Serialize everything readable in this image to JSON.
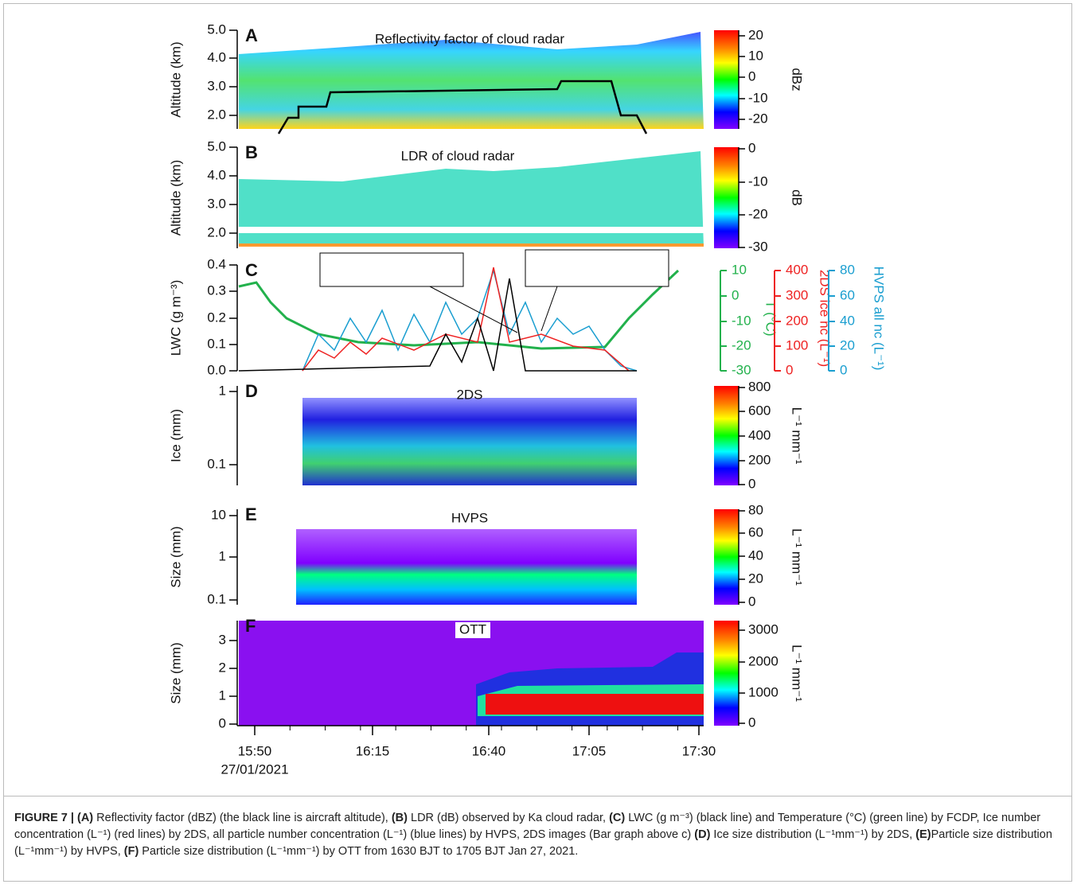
{
  "figure": {
    "panels": [
      {
        "label": "A",
        "title": "Reflectivity factor of cloud radar",
        "ylabel": "Altitude (km)",
        "yticks": [
          "5.0",
          "4.0",
          "3.0",
          "2.0"
        ],
        "colorbar": {
          "label": "dBz",
          "ticks": [
            "20",
            "10",
            "0",
            "-10",
            "-20"
          ]
        }
      },
      {
        "label": "B",
        "title": "LDR of cloud radar",
        "ylabel": "Altitude (km)",
        "yticks": [
          "5.0",
          "4.0",
          "3.0",
          "2.0"
        ],
        "colorbar": {
          "label": "dB",
          "ticks": [
            "0",
            "-10",
            "-20",
            "-30"
          ]
        }
      },
      {
        "label": "C",
        "ylabel": "LWC (g m⁻³)",
        "yticks": [
          "0.4",
          "0.3",
          "0.2",
          "0.1",
          "0.0"
        ],
        "right_axes": [
          {
            "label": "T (°C)",
            "color": "#22b14c",
            "ticks": [
              "10",
              "0",
              "-10",
              "-20",
              "-30"
            ]
          },
          {
            "label": "2DS ice nc (L⁻¹)",
            "color": "#ee2222",
            "ticks": [
              "400",
              "300",
              "200",
              "100",
              "0"
            ]
          },
          {
            "label": "HVPS all nc (L⁻¹)",
            "color": "#1a9ed0",
            "ticks": [
              "80",
              "60",
              "40",
              "20",
              "0"
            ]
          }
        ]
      },
      {
        "label": "D",
        "title": "2DS",
        "ylabel": "Ice (mm)",
        "yticks": [
          "1",
          "0.1"
        ],
        "colorbar": {
          "label": "L⁻¹ mm⁻¹",
          "ticks": [
            "800",
            "600",
            "400",
            "200",
            "0"
          ]
        }
      },
      {
        "label": "E",
        "title": "HVPS",
        "ylabel": "Size (mm)",
        "yticks": [
          "10",
          "1",
          "0.1"
        ],
        "colorbar": {
          "label": "L⁻¹ mm⁻¹",
          "ticks": [
            "80",
            "60",
            "40",
            "20",
            "0"
          ]
        }
      },
      {
        "label": "F",
        "title": "OTT",
        "ylabel": "Size (mm)",
        "yticks": [
          "3",
          "2",
          "1",
          "0"
        ],
        "colorbar": {
          "label": "L⁻¹ mm⁻¹",
          "ticks": [
            "3000",
            "2000",
            "1000",
            "0"
          ]
        }
      }
    ],
    "xticks": [
      "15:50",
      "16:15",
      "16:40",
      "17:05",
      "17:30"
    ],
    "xdate": "27/01/2021"
  },
  "caption": [
    {
      "text": "FIGURE 7 | (A)",
      "bold": true
    },
    {
      "text": " Reflectivity factor (dBZ) (the black line is aircraft altitude), ",
      "bold": false
    },
    {
      "text": "(B)",
      "bold": true
    },
    {
      "text": " LDR (dB) observed by Ka cloud radar, ",
      "bold": false
    },
    {
      "text": "(C)",
      "bold": true
    },
    {
      "text": " LWC (g m⁻³) (black line) and Temperature (°C) (green line) by FCDP, Ice number concentration (L⁻¹) (red lines) by 2DS, all particle number concentration (L⁻¹) (blue lines) by HVPS, 2DS images (Bar graph above c) ",
      "bold": false
    },
    {
      "text": "(D)",
      "bold": true
    },
    {
      "text": " Ice size distribution (L⁻¹mm⁻¹) by 2DS, ",
      "bold": false
    },
    {
      "text": "(E)",
      "bold": true
    },
    {
      "text": "Particle size distribution (L⁻¹mm⁻¹) by HVPS, ",
      "bold": false
    },
    {
      "text": "(F)",
      "bold": true
    },
    {
      "text": " Particle size distribution (L⁻¹mm⁻¹) by OTT from 1630 BJT to 1705 BJT Jan 27, 2021.",
      "bold": false
    }
  ]
}
